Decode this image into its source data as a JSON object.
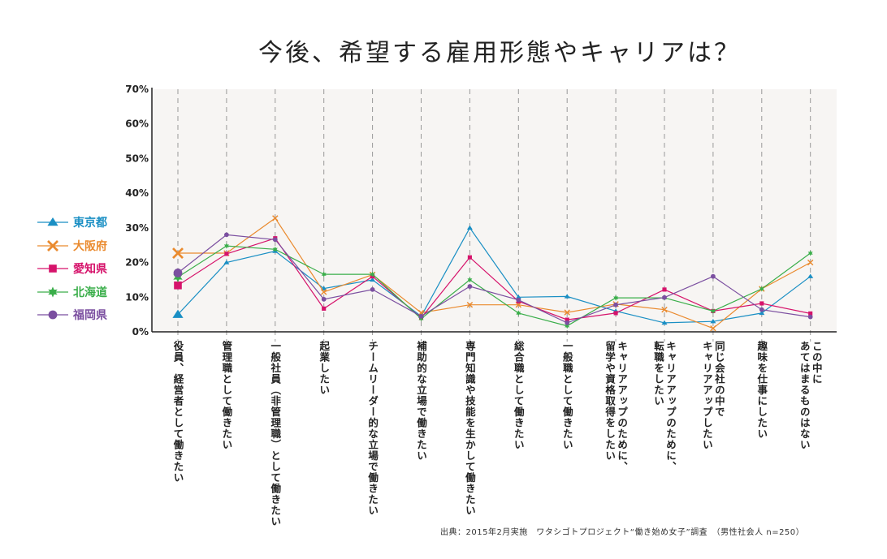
{
  "chart_data": {
    "type": "line",
    "title": "今後、希望する雇用形態やキャリアは？",
    "categories": [
      "役員、経営者として働きたい",
      "管理職として働きたい",
      "一般社員（非管理職）として働きたい",
      "起業したい",
      "チームリーダー的な立場で働きたい",
      "補助的な立場で働きたい",
      "専門知識や技能を生かして働きたい",
      "総合職として働きたい",
      "一般職として働きたい",
      "キャリアアップのために、\n留学や資格取得をしたい",
      "キャリアアップのために、\n転職をしたい",
      "同じ会社の中で\nキャリアアップしたい",
      "趣味を仕事にしたい",
      "この中に\nあてはまるものはない"
    ],
    "yticks": [
      "0%",
      "10%",
      "20%",
      "30%",
      "40%",
      "50%",
      "60%",
      "70%"
    ],
    "ylim": [
      0,
      70
    ],
    "yunit": "%",
    "grid": "vertical dashed",
    "legend_placement": "left",
    "series": [
      {
        "name": "東京都",
        "color": "#1a8fc4",
        "marker": "triangle",
        "values": [
          5,
          20,
          23.3,
          12.5,
          15,
          4.5,
          30,
          10,
          10.2,
          6,
          2.6,
          3,
          5.4,
          16
        ]
      },
      {
        "name": "大阪府",
        "color": "#ea8a2e",
        "marker": "x",
        "values": [
          22.7,
          22.7,
          32.8,
          11.5,
          16.5,
          5.5,
          7.8,
          7.8,
          5.6,
          8,
          6.4,
          1,
          12.4,
          20
        ]
      },
      {
        "name": "愛知県",
        "color": "#d6136b",
        "marker": "square",
        "values": [
          13.4,
          22.5,
          27,
          6.7,
          16,
          4,
          21.5,
          8.8,
          3.5,
          5.4,
          12.2,
          6,
          8.2,
          5.3
        ]
      },
      {
        "name": "北海道",
        "color": "#3aae4a",
        "marker": "star",
        "values": [
          15.8,
          24.8,
          23.8,
          16.6,
          16.6,
          3.8,
          15,
          5.4,
          1.7,
          9.8,
          9.8,
          6,
          12.4,
          22.7
        ]
      },
      {
        "name": "福岡県",
        "color": "#7b4fa0",
        "marker": "circle",
        "values": [
          17,
          28,
          26.6,
          9.4,
          12.2,
          4.5,
          13.1,
          9.2,
          2.6,
          7.8,
          9.9,
          16,
          6.4,
          4.3
        ]
      }
    ]
  },
  "source": "出典：2015年2月実施　ワタシゴトプロジェクト“働き始め女子”調査　（男性社会人 n=250）"
}
